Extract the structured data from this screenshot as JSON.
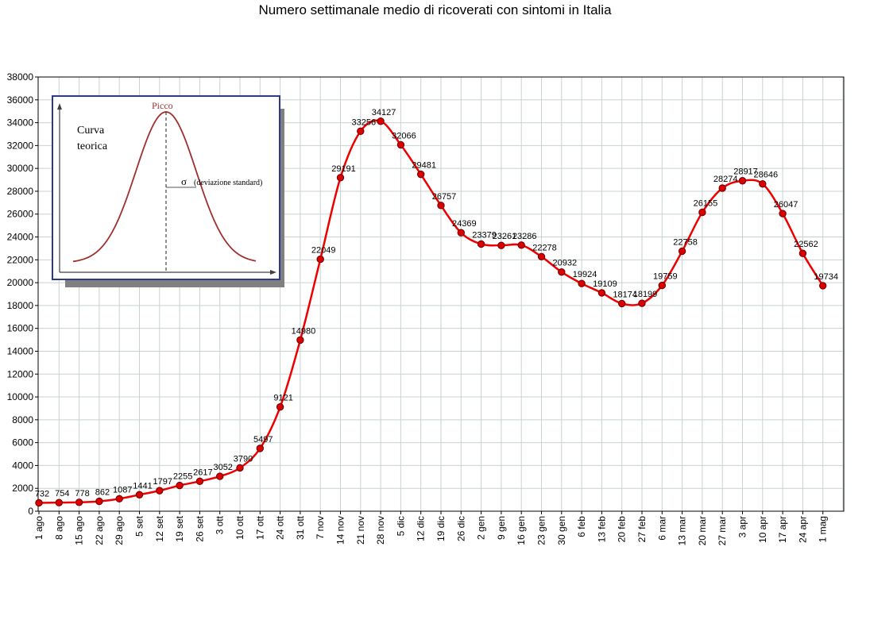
{
  "chart_data": {
    "type": "line",
    "title": "Numero settimanale medio di ricoverati con sintomi in Italia",
    "xlabel": "",
    "ylabel": "",
    "ylim": [
      0,
      38000
    ],
    "ytick_step": 2000,
    "grid": true,
    "legend": "none",
    "colors": {
      "line": "#ee0000",
      "marker": "#dd0000",
      "marker_edge": "#660000",
      "grid": "#c8d2d2"
    },
    "categories": [
      "1 ago",
      "8 ago",
      "15 ago",
      "22 ago",
      "29 ago",
      "5 set",
      "12 set",
      "19 set",
      "26 set",
      "3 ott",
      "10 ott",
      "17 ott",
      "24 ott",
      "31 ott",
      "7 nov",
      "14 nov",
      "21 nov",
      "28 nov",
      "5 dic",
      "12 dic",
      "19 dic",
      "26 dic",
      "2 gen",
      "9 gen",
      "16 gen",
      "23 gen",
      "30 gen",
      "6 feb",
      "13 feb",
      "20 feb",
      "27 feb",
      "6 mar",
      "13 mar",
      "20 mar",
      "27 mar",
      "3 apr",
      "10 apr",
      "17 apr",
      "24 apr",
      "1 mag"
    ],
    "series": [
      {
        "values": [
          732,
          754,
          778,
          862,
          1087,
          1441,
          1797,
          2255,
          2617,
          3052,
          3790,
          5497,
          9121,
          14980,
          22049,
          29191,
          33256,
          34127,
          32066,
          29481,
          26757,
          24369,
          23379,
          23261,
          23286,
          22278,
          20932,
          19924,
          19109,
          18174,
          18199,
          19759,
          22758,
          26155,
          28274,
          28917,
          28646,
          26047,
          22562,
          19734
        ]
      }
    ]
  },
  "inset": {
    "label_line1": "Curva",
    "label_line2": "teorica",
    "peak_label": "Picco",
    "sigma_symbol": "σ",
    "sigma_label": "(deviazione standard)"
  }
}
